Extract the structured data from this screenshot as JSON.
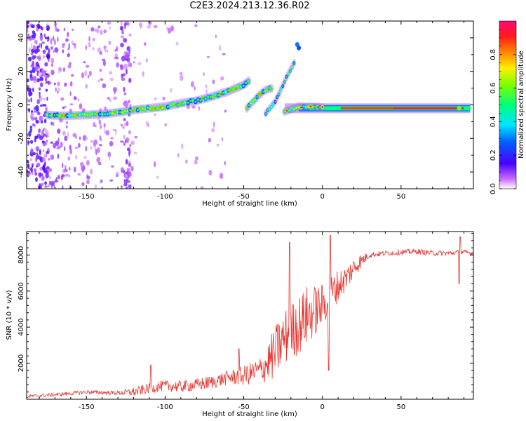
{
  "title": "C2E3.2024.213.12.36.R02",
  "chart_data": [
    {
      "type": "heatmap",
      "xlabel": "Height of straight line (km)",
      "ylabel": "Frequency (Hz)",
      "xlim": [
        -188,
        96
      ],
      "ylim": [
        -50,
        50
      ],
      "x_ticks": [
        -150,
        -100,
        -50,
        0,
        50
      ],
      "y_ticks": [
        -40,
        -20,
        0,
        20,
        40
      ],
      "grid": false,
      "colorbar": {
        "label": "Normalized spectral amplitude",
        "range": [
          0.0,
          1.0
        ],
        "ticks": [
          0.0,
          0.2,
          0.4,
          0.6,
          0.8
        ]
      },
      "main_track": [
        [
          -175,
          -6
        ],
        [
          -165,
          -6.5
        ],
        [
          -150,
          -6
        ],
        [
          -140,
          -5.5
        ],
        [
          -130,
          -4.5
        ],
        [
          -120,
          -3
        ],
        [
          -110,
          -2
        ],
        [
          -100,
          -1
        ],
        [
          -90,
          1
        ],
        [
          -80,
          2.5
        ],
        [
          -70,
          5
        ],
        [
          -60,
          8
        ],
        [
          -50,
          12
        ],
        [
          -46,
          15
        ]
      ],
      "secondary_track": [
        [
          -48,
          -2
        ],
        [
          -44,
          2
        ],
        [
          -40,
          6
        ],
        [
          -36,
          9
        ],
        [
          -32,
          10
        ]
      ],
      "steep_track": [
        [
          -36,
          -5
        ],
        [
          -30,
          2
        ],
        [
          -26,
          10
        ],
        [
          -22,
          18
        ],
        [
          -18,
          25
        ]
      ],
      "flat_track": [
        [
          -24,
          -4
        ],
        [
          -15,
          -1
        ],
        [
          -5,
          -1
        ],
        [
          0,
          -1.5
        ],
        [
          20,
          -1.5
        ],
        [
          50,
          -2
        ],
        [
          80,
          -2
        ],
        [
          94,
          -2
        ]
      ]
    },
    {
      "type": "line",
      "xlabel": "Height of straight line (km)",
      "ylabel": "SNR (10 * v/v)",
      "xlim": [
        -188,
        96
      ],
      "ylim": [
        0,
        9300
      ],
      "x_ticks": [
        -150,
        -100,
        -50,
        0,
        50
      ],
      "y_ticks": [
        2000,
        4000,
        6000,
        8000
      ],
      "grid": false,
      "series": [
        {
          "color": "#e8312b",
          "trend": {
            "x": [
              -188,
              -170,
              -150,
              -130,
              -120,
              -110,
              -100,
              -90,
              -80,
              -70,
              -60,
              -50,
              -40,
              -35,
              -30,
              -25,
              -20,
              -15,
              -10,
              -5,
              0,
              5,
              10,
              15,
              20,
              25,
              30,
              40,
              50,
              60,
              70,
              80,
              90,
              96
            ],
            "y": [
              150,
              250,
              400,
              350,
              400,
              600,
              750,
              700,
              800,
              950,
              1200,
              1300,
              1600,
              2000,
              2600,
              3300,
              3800,
              4100,
              4600,
              4900,
              5200,
              5800,
              6300,
              6700,
              7300,
              7700,
              8000,
              8100,
              8150,
              8200,
              8100,
              8100,
              8150,
              8100
            ]
          },
          "noise": {
            "x": [
              -188,
              -130,
              -120,
              -60,
              -40,
              -30,
              -10,
              0,
              20,
              30,
              96
            ],
            "y": [
              100,
              120,
              250,
              400,
              700,
              1500,
              1700,
              1200,
              600,
              150,
              150
            ]
          },
          "peaks": [
            {
              "x": -21,
              "y": 8700
            },
            {
              "x": 5,
              "y": 9100
            },
            {
              "x": 4,
              "y": 1600
            },
            {
              "x": 87,
              "y": 6400
            },
            {
              "x": 87.5,
              "y": 9000
            },
            {
              "x": -109,
              "y": 1900
            },
            {
              "x": -53,
              "y": 2800
            }
          ]
        }
      ]
    }
  ]
}
